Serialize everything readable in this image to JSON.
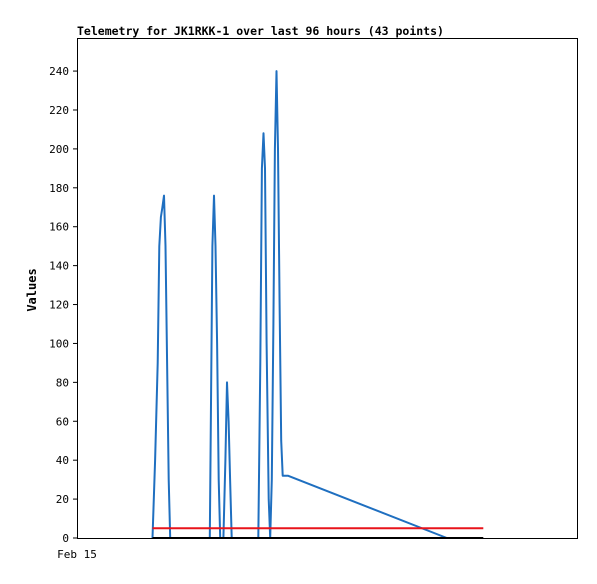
{
  "chart_data": {
    "type": "line",
    "title": "Telemetry for JK1RKK-1 over last 96 hours (43 points)",
    "ylabel": "Values",
    "xlabel": "",
    "x_tick_labels": [
      "Feb 15"
    ],
    "y_ticks": [
      0,
      20,
      40,
      60,
      80,
      100,
      120,
      140,
      160,
      180,
      200,
      220,
      240
    ],
    "ylim": [
      0,
      257
    ],
    "xlim": [
      0,
      96
    ],
    "grid": false,
    "series": [
      {
        "color": "#1f6fc0",
        "x": [
          14.5,
          15.0,
          15.5,
          15.8,
          16.1,
          16.4,
          16.7,
          17.0,
          17.3,
          17.6,
          17.9,
          18.5,
          25.5,
          26.0,
          26.3,
          26.6,
          26.9,
          27.2,
          27.5,
          28.1,
          28.5,
          28.8,
          29.1,
          29.4,
          29.7,
          34.8,
          35.2,
          35.5,
          35.8,
          36.1,
          36.4,
          36.8,
          37.1,
          37.4,
          37.7,
          38.0,
          38.3,
          38.6,
          38.9,
          39.2,
          39.5,
          40.5,
          71.0
        ],
        "y": [
          0,
          40,
          90,
          150,
          165,
          170,
          176,
          150,
          90,
          30,
          0,
          0,
          0,
          150,
          176,
          150,
          100,
          30,
          0,
          0,
          40,
          80,
          60,
          30,
          0,
          0,
          90,
          190,
          208,
          190,
          100,
          20,
          0,
          30,
          110,
          200,
          240,
          200,
          120,
          50,
          32,
          32,
          0
        ]
      },
      {
        "color": "#e8141b",
        "x": [
          14.5,
          78.0
        ],
        "y": [
          5,
          5
        ]
      },
      {
        "color": "#000000",
        "x": [
          14.5,
          78.0
        ],
        "y": [
          0,
          0
        ]
      }
    ]
  }
}
